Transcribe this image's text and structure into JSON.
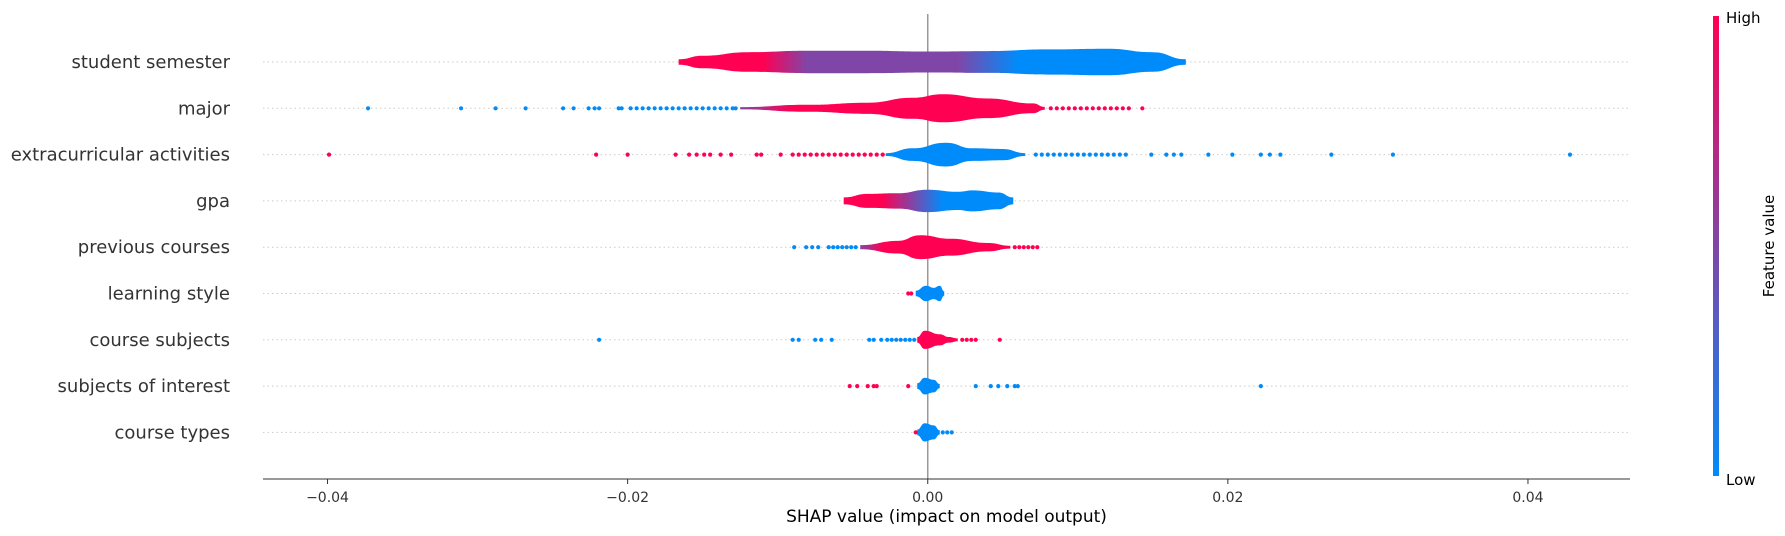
{
  "chart_data": {
    "type": "violin",
    "xlabel": "SHAP value (impact on model output)",
    "xticks": [
      -0.04,
      -0.02,
      0.0,
      0.02,
      0.04
    ],
    "xtick_labels": [
      "−0.04",
      "−0.02",
      "0.00",
      "0.02",
      "0.04"
    ],
    "xlim": [
      -0.0443,
      0.0468
    ],
    "colorbar": {
      "label": "Feature value",
      "high_label": "High",
      "low_label": "Low",
      "high_color": "#ff0052",
      "low_color": "#008bfb"
    },
    "features": [
      {
        "name": "student semester",
        "violin": [
          [
            -0.0166,
            0.2
          ],
          [
            -0.015,
            0.45
          ],
          [
            -0.012,
            0.7
          ],
          [
            -0.008,
            0.8
          ],
          [
            -0.004,
            0.8
          ],
          [
            0.0,
            0.75
          ],
          [
            0.004,
            0.78
          ],
          [
            0.008,
            0.9
          ],
          [
            0.012,
            0.95
          ],
          [
            0.015,
            0.7
          ],
          [
            0.0172,
            0.2
          ]
        ],
        "color_stops": [
          [
            -0.0166,
            "high"
          ],
          [
            -0.011,
            "high"
          ],
          [
            -0.008,
            "mid"
          ],
          [
            -0.003,
            "mid"
          ],
          [
            0.002,
            "mid"
          ],
          [
            0.006,
            "low"
          ],
          [
            0.0172,
            "low"
          ]
        ],
        "low_points": [],
        "high_points": []
      },
      {
        "name": "major",
        "violin": [
          [
            -0.0125,
            0.08
          ],
          [
            -0.008,
            0.25
          ],
          [
            -0.004,
            0.4
          ],
          [
            -0.001,
            0.75
          ],
          [
            0.001,
            1.0
          ],
          [
            0.004,
            0.7
          ],
          [
            0.007,
            0.35
          ],
          [
            0.0078,
            0.1
          ]
        ],
        "color_stops": [
          [
            -0.0125,
            "mid"
          ],
          [
            -0.009,
            "high"
          ],
          [
            -0.003,
            "high"
          ],
          [
            0.0078,
            "high"
          ]
        ],
        "low_points": [
          -0.0373,
          -0.0311,
          -0.0288,
          -0.0268,
          -0.0243,
          -0.0236,
          -0.0226,
          -0.0222,
          -0.0219,
          -0.0206,
          -0.0204,
          -0.0198,
          -0.0194,
          -0.019,
          -0.0186,
          -0.0182,
          -0.0178,
          -0.0174,
          -0.017,
          -0.0166,
          -0.0162,
          -0.0158,
          -0.0154,
          -0.015,
          -0.0146,
          -0.0142,
          -0.0138,
          -0.0134,
          -0.013,
          -0.0128
        ],
        "high_points": [
          0.0082,
          0.0086,
          0.009,
          0.0094,
          0.0098,
          0.0102,
          0.0106,
          0.011,
          0.0114,
          0.0118,
          0.0122,
          0.0126,
          0.013,
          0.0134,
          0.0143
        ]
      },
      {
        "name": "extracurricular activities",
        "violin": [
          [
            -0.0028,
            0.1
          ],
          [
            -0.001,
            0.45
          ],
          [
            0.0012,
            0.85
          ],
          [
            0.003,
            0.45
          ],
          [
            0.005,
            0.4
          ],
          [
            0.0065,
            0.1
          ]
        ],
        "color_stops": [
          [
            -0.0028,
            "low"
          ],
          [
            0.0065,
            "low"
          ]
        ],
        "low_points": [
          0.0072,
          0.0076,
          0.008,
          0.0084,
          0.0088,
          0.0092,
          0.0096,
          0.01,
          0.0104,
          0.0108,
          0.0112,
          0.0116,
          0.012,
          0.0124,
          0.0128,
          0.0132,
          0.0149,
          0.0159,
          0.0164,
          0.0169,
          0.0187,
          0.0203,
          0.0222,
          0.0228,
          0.0235,
          0.0269,
          0.031,
          0.0428
        ],
        "high_points": [
          -0.0399,
          -0.0221,
          -0.02,
          -0.0168,
          -0.0159,
          -0.0154,
          -0.0149,
          -0.0145,
          -0.0138,
          -0.0131,
          -0.0114,
          -0.0111,
          -0.0098,
          -0.009,
          -0.0086,
          -0.0082,
          -0.0078,
          -0.0074,
          -0.007,
          -0.0066,
          -0.0062,
          -0.0058,
          -0.0054,
          -0.005,
          -0.0046,
          -0.0042,
          -0.0038,
          -0.0034,
          -0.003
        ]
      },
      {
        "name": "gpa",
        "violin": [
          [
            -0.0056,
            0.25
          ],
          [
            -0.004,
            0.5
          ],
          [
            -0.002,
            0.55
          ],
          [
            0.0,
            0.8
          ],
          [
            0.002,
            0.65
          ],
          [
            0.003,
            0.75
          ],
          [
            0.0047,
            0.6
          ],
          [
            0.0057,
            0.25
          ]
        ],
        "color_stops": [
          [
            -0.0056,
            "high"
          ],
          [
            -0.003,
            "high"
          ],
          [
            -0.001,
            "mid"
          ],
          [
            0.001,
            "low"
          ],
          [
            0.0057,
            "low"
          ]
        ],
        "low_points": [],
        "high_points": []
      },
      {
        "name": "previous courses",
        "violin": [
          [
            -0.0045,
            0.15
          ],
          [
            -0.002,
            0.45
          ],
          [
            -0.0005,
            0.85
          ],
          [
            0.0015,
            0.6
          ],
          [
            0.004,
            0.3
          ],
          [
            0.0055,
            0.1
          ]
        ],
        "color_stops": [
          [
            -0.0045,
            "mid"
          ],
          [
            -0.003,
            "high"
          ],
          [
            0.0055,
            "high"
          ]
        ],
        "low_points": [
          -0.0089,
          -0.0081,
          -0.0077,
          -0.0073,
          -0.0066,
          -0.0063,
          -0.006,
          -0.0057,
          -0.0054,
          -0.0051,
          -0.0048
        ],
        "high_points": [
          0.0058,
          0.0061,
          0.0064,
          0.0067,
          0.007,
          0.0073
        ]
      },
      {
        "name": "learning style",
        "violin": [
          [
            -0.0008,
            0.2
          ],
          [
            -0.0001,
            0.55
          ],
          [
            0.0004,
            0.4
          ],
          [
            0.0008,
            0.55
          ],
          [
            0.0011,
            0.15
          ]
        ],
        "color_stops": [
          [
            -0.0008,
            "low"
          ],
          [
            0.0011,
            "low"
          ]
        ],
        "low_points": [],
        "high_points": [
          -0.0013,
          -0.0011
        ]
      },
      {
        "name": "course subjects",
        "violin": [
          [
            -0.0007,
            0.2
          ],
          [
            -0.0002,
            0.65
          ],
          [
            0.0008,
            0.4
          ],
          [
            0.0014,
            0.2
          ],
          [
            0.002,
            0.1
          ]
        ],
        "color_stops": [
          [
            -0.0007,
            "high"
          ],
          [
            0.002,
            "high"
          ]
        ],
        "low_points": [
          -0.0219,
          -0.009,
          -0.0086,
          -0.0075,
          -0.0071,
          -0.0064,
          -0.0039,
          -0.0036,
          -0.0031,
          -0.0027,
          -0.0024,
          -0.0021,
          -0.0018,
          -0.0015,
          -0.0012,
          -0.0009
        ],
        "high_points": [
          0.0023,
          0.0026,
          0.0029,
          0.0032,
          0.0048
        ]
      },
      {
        "name": "subjects of interest",
        "violin": [
          [
            -0.0007,
            0.2
          ],
          [
            -0.0002,
            0.6
          ],
          [
            0.0004,
            0.45
          ],
          [
            0.0008,
            0.15
          ]
        ],
        "color_stops": [
          [
            -0.0007,
            "low"
          ],
          [
            0.0008,
            "low"
          ]
        ],
        "low_points": [
          0.0032,
          0.0042,
          0.0047,
          0.0053,
          0.0058,
          0.006,
          0.0222
        ],
        "high_points": [
          -0.0052,
          -0.0047,
          -0.004,
          -0.0036,
          -0.0034,
          -0.0013
        ]
      },
      {
        "name": "course types",
        "violin": [
          [
            -0.0007,
            0.2
          ],
          [
            -0.0002,
            0.65
          ],
          [
            0.0004,
            0.5
          ],
          [
            0.0008,
            0.15
          ]
        ],
        "color_stops": [
          [
            -0.0007,
            "low"
          ],
          [
            0.0008,
            "low"
          ]
        ],
        "low_points": [
          0.001,
          0.0013,
          0.0016
        ],
        "high_points": [
          -0.0008
        ]
      }
    ]
  }
}
